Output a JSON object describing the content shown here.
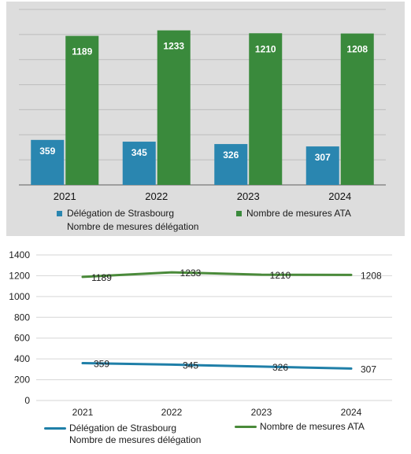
{
  "chart_data": [
    {
      "type": "bar",
      "categories": [
        "2021",
        "2022",
        "2023",
        "2024"
      ],
      "series": [
        {
          "name": "Délégation de Strasbourg",
          "values": [
            359,
            345,
            326,
            307
          ],
          "color": "#2a86b0"
        },
        {
          "name": "Nombre de mesures ATA",
          "values": [
            1189,
            1233,
            1210,
            1208
          ],
          "color": "#3a8a3c"
        }
      ],
      "legend_extra": "Nombre de mesures délégation",
      "ylim": [
        0,
        1400
      ],
      "grid": true,
      "legend_position": "bottom"
    },
    {
      "type": "line",
      "categories": [
        "2021",
        "2022",
        "2023",
        "2024"
      ],
      "series": [
        {
          "name": "Délégation de Strasbourg",
          "values": [
            359,
            345,
            326,
            307
          ],
          "color": "#1f7fa8"
        },
        {
          "name": "Nombre de mesures ATA",
          "values": [
            1189,
            1233,
            1210,
            1208
          ],
          "color": "#4a8a3a"
        }
      ],
      "legend_extra": "Nombre de mesures délégation",
      "yticks": [
        "0",
        "200",
        "400",
        "600",
        "800",
        "1000",
        "1200",
        "1400"
      ],
      "ylim": [
        0,
        1400
      ],
      "grid": true,
      "legend_position": "bottom"
    }
  ]
}
